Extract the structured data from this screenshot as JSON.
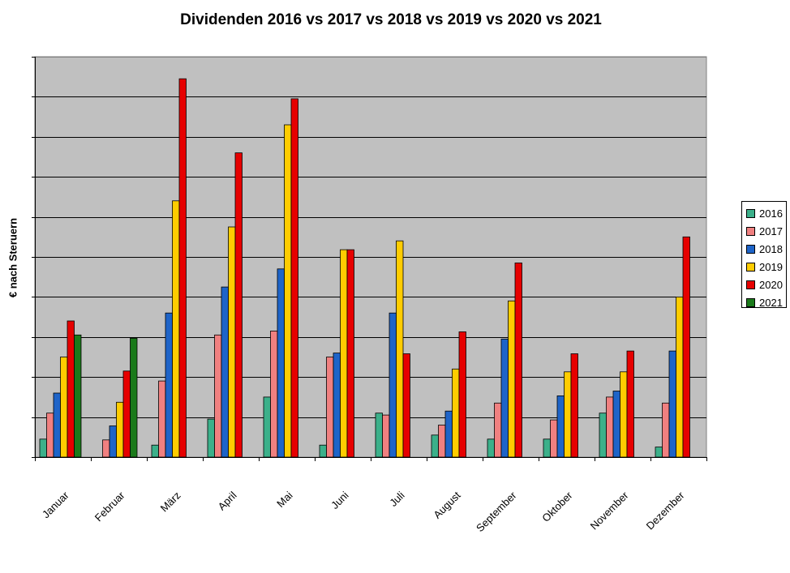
{
  "chart_data": {
    "type": "bar",
    "title": "Dividenden 2016 vs 2017 vs 2018 vs 2019 vs 2020 vs 2021",
    "xlabel": "",
    "ylabel": "€ nach Steruern",
    "ylim": [
      0,
      100
    ],
    "grid": true,
    "legend_position": "right",
    "plot_background": "#c0c0c0",
    "categories": [
      "Januar",
      "Februar",
      "März",
      "April",
      "Mai",
      "Juni",
      "Juli",
      "August",
      "September",
      "Oktober",
      "November",
      "Dezember"
    ],
    "series": [
      {
        "name": "2016",
        "color": "#3cb08a",
        "values": [
          4.5,
          0,
          3,
          9.5,
          15,
          3,
          11,
          5.5,
          4.5,
          4.5,
          11,
          2.5
        ]
      },
      {
        "name": "2017",
        "color": "#f08080",
        "values": [
          11,
          4.3,
          19,
          30.5,
          31.5,
          25,
          10.5,
          8,
          13.5,
          9.3,
          15,
          13.5
        ]
      },
      {
        "name": "2018",
        "color": "#1e64c8",
        "values": [
          16,
          7.8,
          36,
          42.5,
          47,
          26,
          36,
          11.5,
          29.5,
          15.3,
          16.5,
          26.5
        ]
      },
      {
        "name": "2019",
        "color": "#ffcc00",
        "values": [
          25,
          13.7,
          64,
          57.5,
          83,
          51.8,
          54,
          22,
          39,
          21.3,
          21.3,
          40
        ]
      },
      {
        "name": "2020",
        "color": "#e60000",
        "values": [
          34,
          21.5,
          94.5,
          76,
          89.5,
          51.8,
          25.8,
          31.3,
          48.5,
          25.8,
          26.5,
          55
        ]
      },
      {
        "name": "2021",
        "color": "#1a7a1a",
        "values": [
          30.5,
          29.7,
          null,
          null,
          null,
          null,
          null,
          null,
          null,
          null,
          null,
          null
        ]
      }
    ]
  }
}
